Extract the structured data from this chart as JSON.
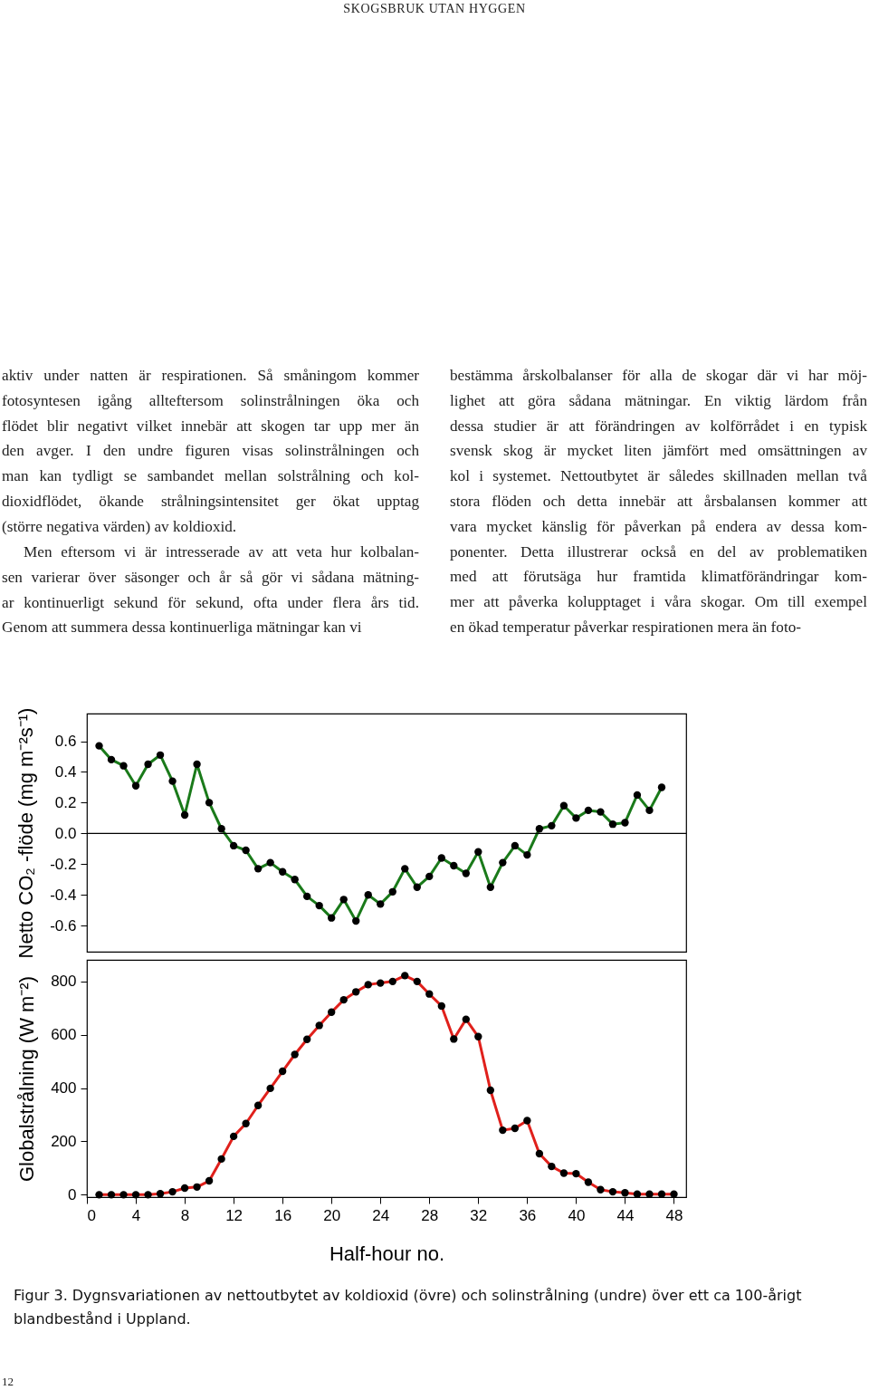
{
  "chart_data": [
    {
      "type": "line",
      "ylabel": "Netto CO₂ -flöde (mg m⁻²s⁻¹)",
      "x": [
        1,
        2,
        3,
        4,
        5,
        6,
        7,
        8,
        9,
        10,
        11,
        12,
        13,
        14,
        15,
        16,
        17,
        18,
        19,
        20,
        21,
        22,
        23,
        24,
        25,
        26,
        27,
        28,
        29,
        30,
        31,
        32,
        33,
        34,
        35,
        36,
        37,
        38,
        39,
        40,
        41,
        42,
        43,
        44,
        45,
        46,
        47
      ],
      "series": [
        {
          "color": "#1a7a1a",
          "values": [
            0.57,
            0.48,
            0.44,
            0.31,
            0.45,
            0.51,
            0.34,
            0.12,
            0.45,
            0.2,
            0.03,
            -0.08,
            -0.11,
            -0.23,
            -0.19,
            -0.25,
            -0.3,
            -0.41,
            -0.47,
            -0.55,
            -0.43,
            -0.57,
            -0.4,
            -0.46,
            -0.38,
            -0.23,
            -0.35,
            -0.28,
            -0.16,
            -0.21,
            -0.26,
            -0.12,
            -0.35,
            -0.19,
            -0.08,
            -0.14,
            0.03,
            0.05,
            0.18,
            0.1,
            0.15,
            0.14,
            0.06,
            0.07,
            0.25,
            0.15,
            0.3
          ]
        }
      ],
      "xlim": [
        0,
        49
      ],
      "ylim": [
        -0.77,
        0.78
      ],
      "yticks": [
        -0.6,
        -0.4,
        -0.2,
        {
          "value": 0,
          "label": "0.0"
        },
        0.2,
        0.4,
        0.6
      ],
      "tick_labels": "y",
      "grid": false,
      "marker": "circle",
      "line_style": "solid",
      "ref_lines": [
        {
          "axis": "y",
          "value": 0,
          "color": "#000000"
        }
      ],
      "annotations": [
        "SKOGSBRUK UTAN HYGGEN",
        "aktiv under natten är respirationen. Så småningom kommer\nfotosyntesen igång allteftersom solinstrålningen öka och\nflödet blir negativt vilket innebär att skogen tar upp mer än\nden avger. I den undre figuren visas solinstrålningen och\nman kan tydligt se sambandet mellan solstrålning och kol-\ndioxidflödet, ökande strålningsintensitet ger ökat upptag\n(större negativa värden) av koldioxid.",
        "Men eftersom vi är intresserade av att veta hur kolbalan-\nsen varierar över säsonger och år så gör vi sådana mätning-\nar kontinuerligt sekund för sekund, ofta under flera års tid.\nGenom att summera dessa kontinuerliga mätningar kan vi",
        "bestämma årskolbalanser för alla de skogar där vi har möj-\nlighet att göra sådana mätningar. En viktig lärdom från\ndessa studier är att förändringen av kolförrådet i en typisk\nsvensk skog är mycket liten jämfört med omsättningen av\nkol i systemet. Nettoutbytet är således skillnaden mellan två\nstora flöden och detta innebär att årsbalansen kommer att\nvara mycket känslig för påverkan på endera av dessa kom-\nponenter. Detta illustrerar också en del av problematiken\nmed att förutsäga hur framtida klimatförändringar kom-\nmer att påverka kolupptaget i våra skogar. Om till exempel\nen ökad temperatur påverkar respirationen mera än foto-"
      ]
    },
    {
      "type": "line",
      "xlabel": "Half-hour no.",
      "ylabel": "Globalstrålning (W m⁻²)",
      "x": [
        1,
        2,
        3,
        4,
        5,
        6,
        7,
        8,
        9,
        10,
        11,
        12,
        13,
        14,
        15,
        16,
        17,
        18,
        19,
        20,
        21,
        22,
        23,
        24,
        25,
        26,
        27,
        28,
        29,
        30,
        31,
        32,
        33,
        34,
        35,
        36,
        37,
        38,
        39,
        40,
        41,
        42,
        43,
        44,
        45,
        46,
        47,
        48
      ],
      "series": [
        {
          "color": "#e0201b",
          "values": [
            0,
            0,
            0,
            0,
            0,
            4,
            11,
            25,
            29,
            52,
            134,
            219,
            267,
            335,
            399,
            463,
            526,
            583,
            635,
            685,
            731,
            761,
            788,
            794,
            800,
            822,
            800,
            753,
            708,
            584,
            658,
            593,
            392,
            242,
            249,
            278,
            154,
            106,
            81,
            79,
            47,
            19,
            11,
            7,
            2,
            2,
            2,
            2
          ]
        }
      ],
      "xlim": [
        0,
        49
      ],
      "ylim": [
        -9,
        881
      ],
      "xticks": [
        0,
        4,
        8,
        12,
        16,
        20,
        24,
        28,
        32,
        36,
        40,
        44,
        48
      ],
      "yticks": [
        0,
        200,
        400,
        600,
        800
      ],
      "grid": false,
      "marker": "circle",
      "line_style": "solid",
      "annotations": [
        "Figur 3. Dygnsvariationen av nettoutbytet av koldioxid (övre) och solinstrålning (undre) över ett ca 100-årigt blandbestånd i Uppland.",
        "12"
      ]
    }
  ]
}
